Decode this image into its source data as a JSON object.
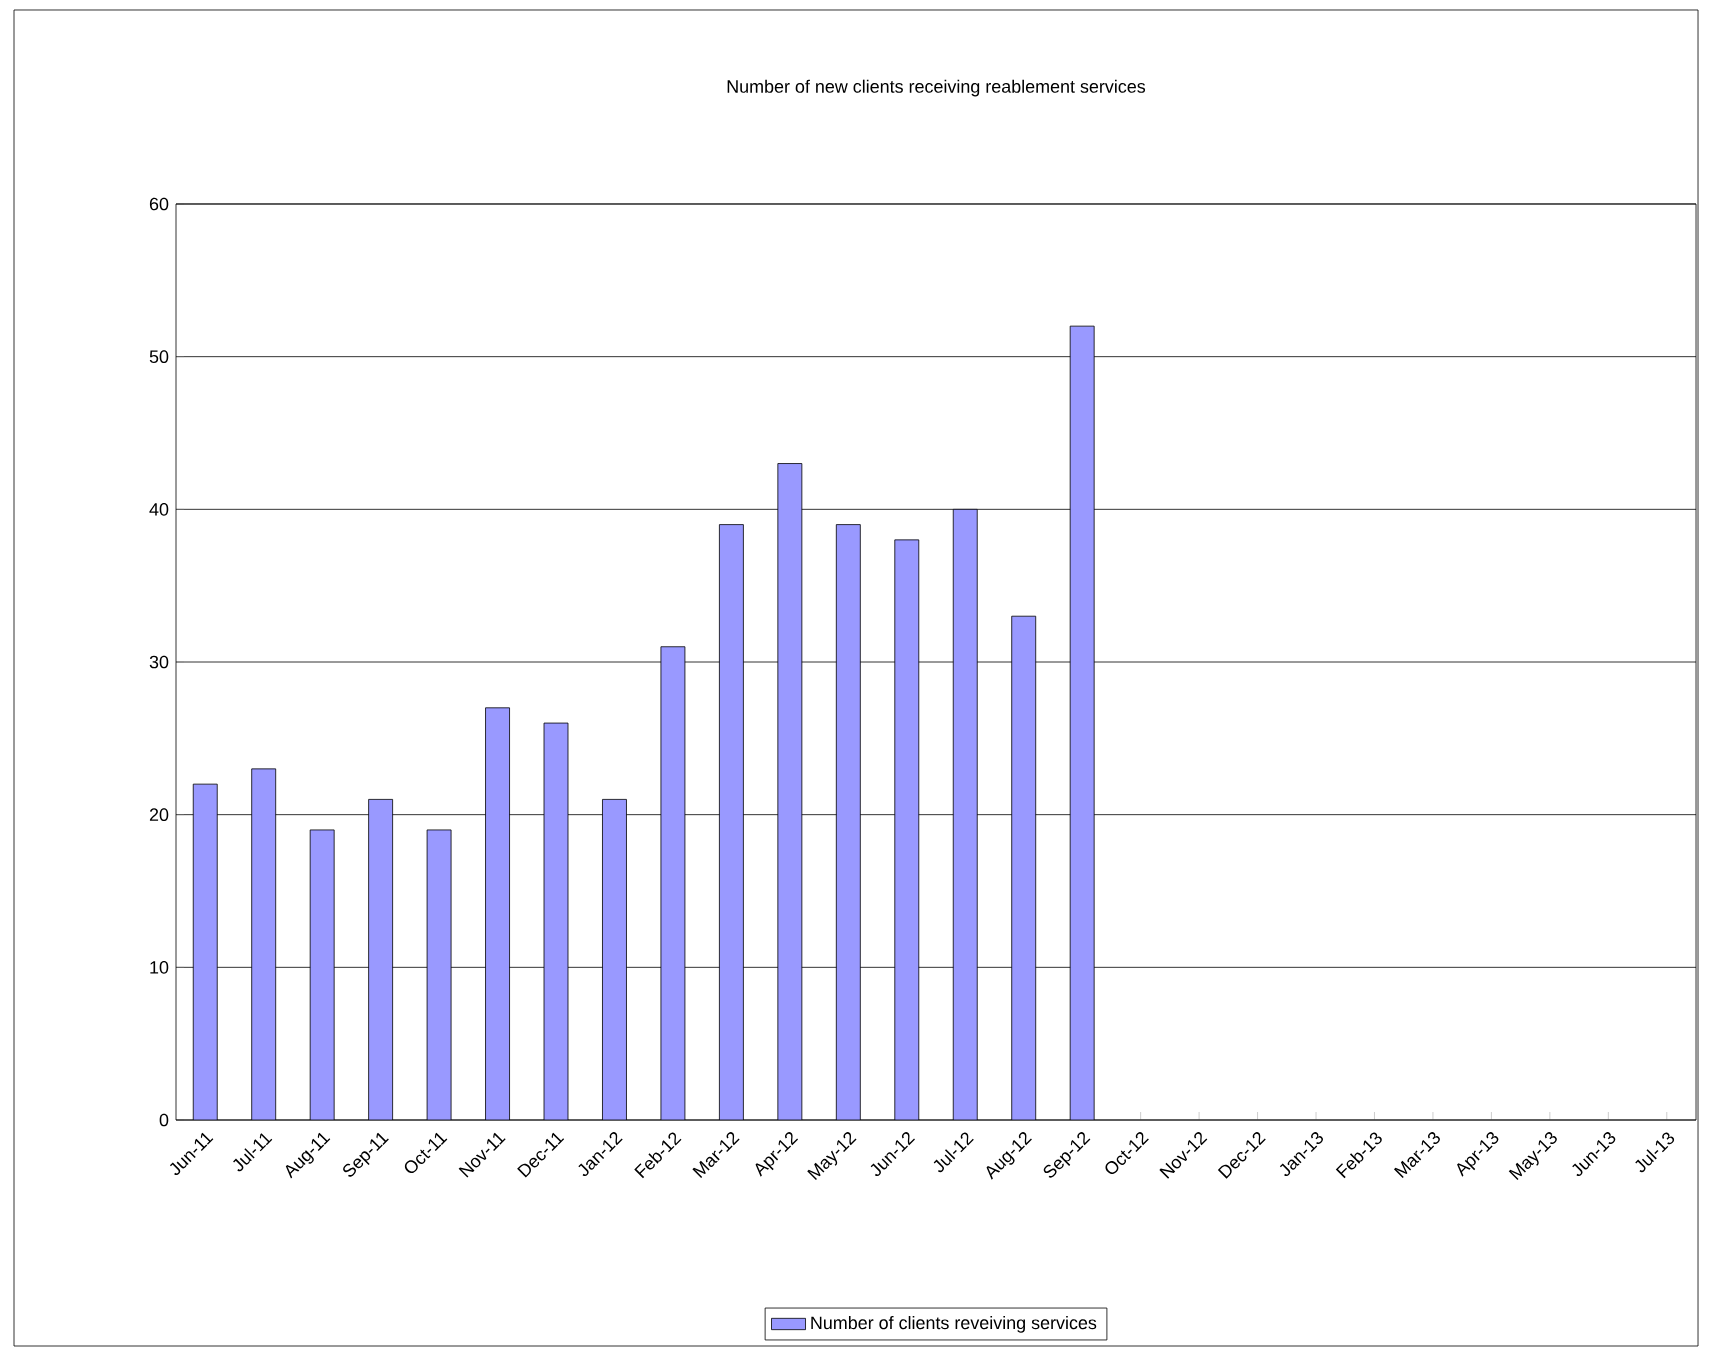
{
  "chart_data": {
    "type": "bar",
    "title": "Number of new clients receiving reablement services",
    "categories": [
      "Jun-11",
      "Jul-11",
      "Aug-11",
      "Sep-11",
      "Oct-11",
      "Nov-11",
      "Dec-11",
      "Jan-12",
      "Feb-12",
      "Mar-12",
      "Apr-12",
      "May-12",
      "Jun-12",
      "Jul-12",
      "Aug-12",
      "Sep-12",
      "Oct-12",
      "Nov-12",
      "Dec-12",
      "Jan-13",
      "Feb-13",
      "Mar-13",
      "Apr-13",
      "May-13",
      "Jun-13",
      "Jul-13"
    ],
    "series": [
      {
        "name": "Number of clients reveiving services",
        "color": "#9999ff",
        "values": [
          22,
          23,
          19,
          21,
          19,
          27,
          26,
          21,
          31,
          39,
          43,
          39,
          38,
          40,
          33,
          52,
          null,
          null,
          null,
          null,
          null,
          null,
          null,
          null,
          null,
          null
        ]
      }
    ],
    "ylim": [
      0,
      60
    ],
    "yticks": [
      0,
      10,
      20,
      30,
      40,
      50,
      60
    ],
    "grid": "y",
    "legend": "bottom"
  }
}
